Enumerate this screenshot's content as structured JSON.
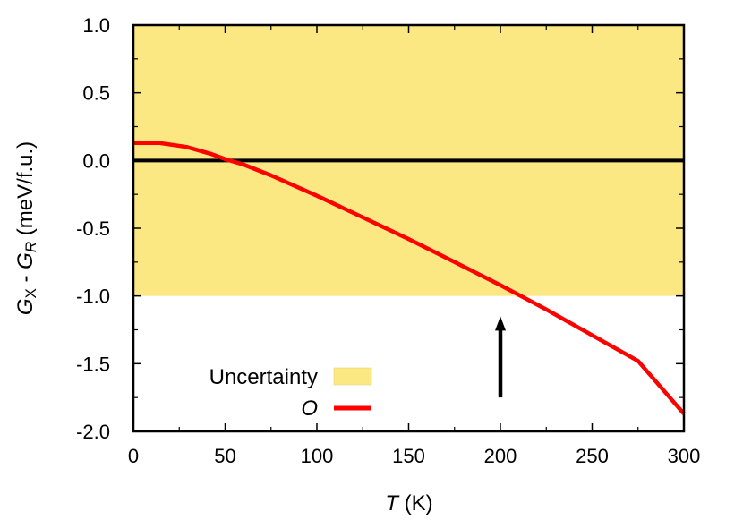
{
  "chart_data": {
    "type": "line",
    "xlabel": {
      "var": "T",
      "unit": " (K)"
    },
    "ylabel": {
      "g1": "G",
      "sub1": "X",
      "mid": " - ",
      "g2": "G",
      "sub2": "R",
      "unit": " (meV/f.u.)"
    },
    "xlim": [
      0,
      300
    ],
    "ylim": [
      -2.0,
      1.0
    ],
    "xticks": [
      "0",
      "50",
      "100",
      "150",
      "200",
      "250",
      "300"
    ],
    "yticks": [
      "1.0",
      "0.5",
      "0.0",
      "-0.5",
      "-1.0",
      "-1.5",
      "-2.0"
    ],
    "uncertainty_band": {
      "name": "Uncertainty",
      "y_range": [
        -1.0,
        1.0
      ],
      "color": "#fce883"
    },
    "reference_line": {
      "y": 0.0,
      "color": "#000000"
    },
    "series": [
      {
        "name": "O",
        "color": "#ff0000",
        "x": [
          0,
          14,
          29,
          42,
          50,
          60,
          75,
          100,
          125,
          150,
          175,
          200,
          225,
          250,
          275,
          300
        ],
        "y": [
          0.13,
          0.13,
          0.1,
          0.05,
          0.01,
          -0.03,
          -0.11,
          -0.26,
          -0.42,
          -0.58,
          -0.75,
          -0.92,
          -1.1,
          -1.29,
          -1.48,
          -1.87
        ]
      }
    ],
    "annotation": {
      "type": "arrow",
      "x": 200,
      "y_from": -1.75,
      "y_to": -1.15,
      "color": "#000000"
    },
    "legend_position": "bottom-left",
    "grid": false
  }
}
